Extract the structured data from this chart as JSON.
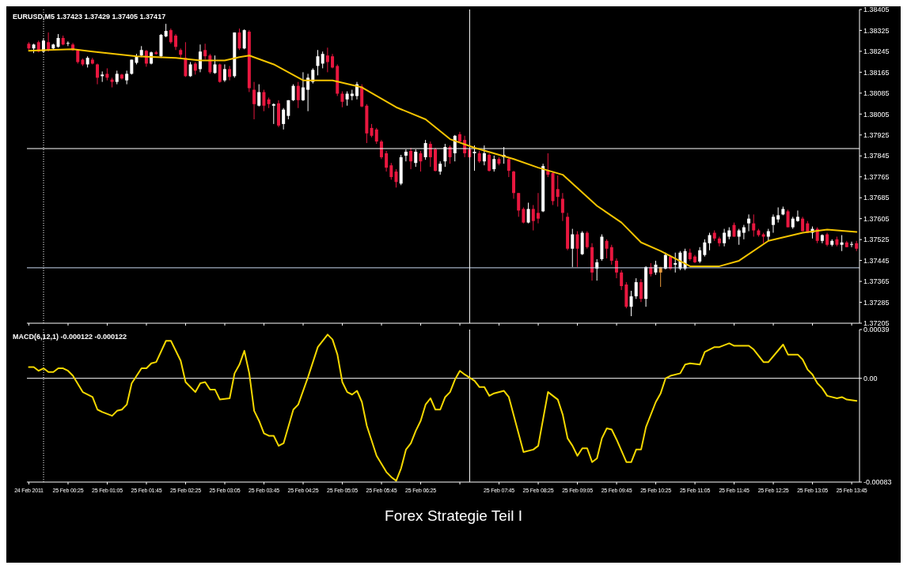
{
  "chart_data": [
    {
      "type": "candlestick",
      "title": "EURUSD,M5 1.37423 1.37429 1.37405 1.37417",
      "x": [
        "2011-02-24T23:45",
        "2011-02-24T23:50",
        "2011-02-24T23:55",
        "2011-02-25T00:00",
        "2011-02-25T00:05",
        "2011-02-25T00:10",
        "2011-02-25T00:15",
        "2011-02-25T00:20",
        "2011-02-25T00:25",
        "2011-02-25T00:30",
        "2011-02-25T00:35",
        "2011-02-25T00:40",
        "2011-02-25T00:45",
        "2011-02-25T00:50",
        "2011-02-25T00:55",
        "2011-02-25T01:00",
        "2011-02-25T01:05",
        "2011-02-25T01:10",
        "2011-02-25T01:15",
        "2011-02-25T01:20",
        "2011-02-25T01:25",
        "2011-02-25T01:30",
        "2011-02-25T01:35",
        "2011-02-25T01:40",
        "2011-02-25T01:45",
        "2011-02-25T01:50",
        "2011-02-25T01:55",
        "2011-02-25T02:00",
        "2011-02-25T02:05",
        "2011-02-25T02:10",
        "2011-02-25T02:15",
        "2011-02-25T02:20",
        "2011-02-25T02:25",
        "2011-02-25T02:30",
        "2011-02-25T02:35",
        "2011-02-25T02:40",
        "2011-02-25T02:45",
        "2011-02-25T02:50",
        "2011-02-25T02:55",
        "2011-02-25T03:00",
        "2011-02-25T03:05",
        "2011-02-25T03:10",
        "2011-02-25T03:15",
        "2011-02-25T03:20",
        "2011-02-25T03:25",
        "2011-02-25T03:30",
        "2011-02-25T03:35",
        "2011-02-25T03:40",
        "2011-02-25T03:45",
        "2011-02-25T03:50",
        "2011-02-25T03:55",
        "2011-02-25T04:00",
        "2011-02-25T04:05",
        "2011-02-25T04:10",
        "2011-02-25T04:15",
        "2011-02-25T04:20",
        "2011-02-25T04:25",
        "2011-02-25T04:30",
        "2011-02-25T04:35",
        "2011-02-25T04:40",
        "2011-02-25T04:45",
        "2011-02-25T04:50",
        "2011-02-25T04:55",
        "2011-02-25T05:00",
        "2011-02-25T05:05",
        "2011-02-25T05:10",
        "2011-02-25T05:15",
        "2011-02-25T05:20",
        "2011-02-25T05:25",
        "2011-02-25T05:30",
        "2011-02-25T05:35",
        "2011-02-25T05:40",
        "2011-02-25T05:45",
        "2011-02-25T05:50",
        "2011-02-25T05:55",
        "2011-02-25T06:00",
        "2011-02-25T06:05",
        "2011-02-25T06:10",
        "2011-02-25T06:15",
        "2011-02-25T06:20",
        "2011-02-25T06:25",
        "2011-02-25T06:30",
        "2011-02-25T06:35",
        "2011-02-25T06:40",
        "2011-02-25T06:45",
        "2011-02-25T06:50",
        "2011-02-25T06:55",
        "2011-02-25T07:00",
        "2011-02-25T07:05",
        "2011-02-25T07:10",
        "2011-02-25T07:15",
        "2011-02-25T07:20",
        "2011-02-25T07:25",
        "2011-02-25T07:30",
        "2011-02-25T07:35",
        "2011-02-25T07:40",
        "2011-02-25T07:45",
        "2011-02-25T07:50",
        "2011-02-25T07:55",
        "2011-02-25T08:00",
        "2011-02-25T08:05",
        "2011-02-25T08:10",
        "2011-02-25T08:15",
        "2011-02-25T08:20",
        "2011-02-25T08:25",
        "2011-02-25T08:30",
        "2011-02-25T08:35",
        "2011-02-25T08:40",
        "2011-02-25T08:45",
        "2011-02-25T08:50",
        "2011-02-25T08:55",
        "2011-02-25T09:00",
        "2011-02-25T09:05",
        "2011-02-25T09:10",
        "2011-02-25T09:15",
        "2011-02-25T09:20",
        "2011-02-25T09:25",
        "2011-02-25T09:30",
        "2011-02-25T09:35",
        "2011-02-25T09:40",
        "2011-02-25T09:45",
        "2011-02-25T09:50",
        "2011-02-25T09:55",
        "2011-02-25T10:00",
        "2011-02-25T10:05",
        "2011-02-25T10:10",
        "2011-02-25T10:15",
        "2011-02-25T10:20",
        "2011-02-25T10:25",
        "2011-02-25T10:30",
        "2011-02-25T10:35",
        "2011-02-25T10:40",
        "2011-02-25T10:45",
        "2011-02-25T10:50",
        "2011-02-25T10:55",
        "2011-02-25T11:00",
        "2011-02-25T11:05",
        "2011-02-25T11:10",
        "2011-02-25T11:15",
        "2011-02-25T11:20",
        "2011-02-25T11:25",
        "2011-02-25T11:30",
        "2011-02-25T11:35",
        "2011-02-25T11:40",
        "2011-02-25T11:45",
        "2011-02-25T11:50",
        "2011-02-25T11:55",
        "2011-02-25T12:00",
        "2011-02-25T12:05",
        "2011-02-25T12:10",
        "2011-02-25T12:15",
        "2011-02-25T12:20",
        "2011-02-25T12:25",
        "2011-02-25T12:30",
        "2011-02-25T12:35",
        "2011-02-25T12:40",
        "2011-02-25T12:45",
        "2011-02-25T12:50",
        "2011-02-25T12:55",
        "2011-02-25T13:00",
        "2011-02-25T13:05",
        "2011-02-25T13:10",
        "2011-02-25T13:15",
        "2011-02-25T13:20",
        "2011-02-25T13:25",
        "2011-02-25T13:30",
        "2011-02-25T13:35",
        "2011-02-25T13:40",
        "2011-02-25T13:45",
        "2011-02-25T13:50"
      ],
      "ohlc": [
        [
          1.38274,
          1.3828,
          1.3825,
          1.38256
        ],
        [
          1.38256,
          1.38274,
          1.38238,
          1.38271
        ],
        [
          1.3828,
          1.38286,
          1.38241,
          1.38244
        ],
        [
          1.38244,
          1.38293,
          1.38241,
          1.38286
        ],
        [
          1.3828,
          1.38317,
          1.38244,
          1.3825
        ],
        [
          1.38256,
          1.38274,
          1.3825,
          1.38271
        ],
        [
          1.38262,
          1.38311,
          1.38259,
          1.38296
        ],
        [
          1.38296,
          1.38305,
          1.38268,
          1.38271
        ],
        [
          1.38277,
          1.38283,
          1.38265,
          1.38277
        ],
        [
          1.38271,
          1.38277,
          1.38247,
          1.3825
        ],
        [
          1.3825,
          1.38253,
          1.38198,
          1.38204
        ],
        [
          1.38213,
          1.38217,
          1.38189,
          1.38195
        ],
        [
          1.38195,
          1.38226,
          1.38183,
          1.3822
        ],
        [
          1.38213,
          1.3822,
          1.38195,
          1.38198
        ],
        [
          1.38195,
          1.38198,
          1.38119,
          1.38144
        ],
        [
          1.3815,
          1.38168,
          1.38128,
          1.38156
        ],
        [
          1.38159,
          1.3818,
          1.38134,
          1.38144
        ],
        [
          1.38137,
          1.38144,
          1.38107,
          1.38128
        ],
        [
          1.38128,
          1.38171,
          1.38119,
          1.38159
        ],
        [
          1.38156,
          1.38159,
          1.38137,
          1.38141
        ],
        [
          1.38134,
          1.38171,
          1.38119,
          1.38159
        ],
        [
          1.38159,
          1.38213,
          1.38156,
          1.38213
        ],
        [
          1.38201,
          1.38235,
          1.38195,
          1.38226
        ],
        [
          1.38229,
          1.38265,
          1.38223,
          1.3825
        ],
        [
          1.38247,
          1.3825,
          1.38186,
          1.38198
        ],
        [
          1.38198,
          1.38244,
          1.38195,
          1.38241
        ],
        [
          1.38241,
          1.38247,
          1.38232,
          1.38235
        ],
        [
          1.38226,
          1.38311,
          1.3822,
          1.38308
        ],
        [
          1.38302,
          1.3835,
          1.38299,
          1.38323
        ],
        [
          1.38326,
          1.38332,
          1.38274,
          1.3828
        ],
        [
          1.38305,
          1.38311,
          1.3825,
          1.38262
        ],
        [
          1.3825,
          1.38256,
          1.3822,
          1.38232
        ],
        [
          1.3822,
          1.3828,
          1.38147,
          1.3815
        ],
        [
          1.3815,
          1.38204,
          1.38147,
          1.38195
        ],
        [
          1.38198,
          1.38204,
          1.38156,
          1.38171
        ],
        [
          1.38177,
          1.38271,
          1.38165,
          1.38244
        ],
        [
          1.3825,
          1.38274,
          1.38213,
          1.38226
        ],
        [
          1.38229,
          1.38235,
          1.38159,
          1.38165
        ],
        [
          1.38162,
          1.38229,
          1.38159,
          1.38195
        ],
        [
          1.38195,
          1.38198,
          1.38125,
          1.38128
        ],
        [
          1.38134,
          1.38195,
          1.38128,
          1.38177
        ],
        [
          1.38177,
          1.38189,
          1.38134,
          1.38147
        ],
        [
          1.3815,
          1.38317,
          1.38144,
          1.38317
        ],
        [
          1.38317,
          1.38332,
          1.3825,
          1.38256
        ],
        [
          1.38256,
          1.38329,
          1.38253,
          1.38326
        ],
        [
          1.3832,
          1.38326,
          1.38089,
          1.38104
        ],
        [
          1.38098,
          1.38128,
          1.37985,
          1.38043
        ],
        [
          1.38037,
          1.38119,
          1.38034,
          1.38089
        ],
        [
          1.38089,
          1.38098,
          1.38016,
          1.38037
        ],
        [
          1.38061,
          1.38068,
          1.38028,
          1.38043
        ],
        [
          1.38037,
          1.38046,
          1.37967,
          1.38043
        ],
        [
          1.38046,
          1.38058,
          1.37955,
          1.37961
        ],
        [
          1.37967,
          1.38028,
          1.37946,
          1.38022
        ],
        [
          1.37998,
          1.38058,
          1.37985,
          1.38058
        ],
        [
          1.38058,
          1.38119,
          1.38055,
          1.38113
        ],
        [
          1.38113,
          1.38128,
          1.38028,
          1.38058
        ],
        [
          1.38058,
          1.38165,
          1.38055,
          1.38107
        ],
        [
          1.38098,
          1.38159,
          1.38016,
          1.38144
        ],
        [
          1.38128,
          1.3818,
          1.38122,
          1.38174
        ],
        [
          1.38189,
          1.3825,
          1.38153,
          1.38226
        ],
        [
          1.38198,
          1.38244,
          1.3818,
          1.38235
        ],
        [
          1.38229,
          1.38259,
          1.38165,
          1.38204
        ],
        [
          1.38226,
          1.38235,
          1.3818,
          1.38183
        ],
        [
          1.38189,
          1.38195,
          1.38074,
          1.38083
        ],
        [
          1.38083,
          1.38092,
          1.38031,
          1.38052
        ],
        [
          1.38061,
          1.38092,
          1.38037,
          1.38083
        ],
        [
          1.38074,
          1.38098,
          1.38058,
          1.38083
        ],
        [
          1.38074,
          1.38128,
          1.38061,
          1.38119
        ],
        [
          1.3811,
          1.38119,
          1.38031,
          1.38034
        ],
        [
          1.38037,
          1.38043,
          1.37894,
          1.37931
        ],
        [
          1.37952,
          1.37967,
          1.37916,
          1.37922
        ],
        [
          1.37946,
          1.37952,
          1.37891,
          1.379
        ],
        [
          1.379,
          1.37906,
          1.37833,
          1.3784
        ],
        [
          1.37855,
          1.37864,
          1.37785,
          1.378
        ],
        [
          1.37809,
          1.37818,
          1.37754,
          1.37764
        ],
        [
          1.37785,
          1.37794,
          1.37724,
          1.37745
        ],
        [
          1.37739,
          1.37849,
          1.37733,
          1.3784
        ],
        [
          1.37846,
          1.3787,
          1.37824,
          1.37861
        ],
        [
          1.37864,
          1.37876,
          1.37794,
          1.37824
        ],
        [
          1.37818,
          1.3787,
          1.37803,
          1.37861
        ],
        [
          1.37855,
          1.37864,
          1.37785,
          1.37824
        ],
        [
          1.3784,
          1.37906,
          1.3783,
          1.37894
        ],
        [
          1.37891,
          1.379,
          1.37803,
          1.3784
        ],
        [
          1.3787,
          1.37876,
          1.37785,
          1.37788
        ],
        [
          1.37785,
          1.37824,
          1.37773,
          1.37815
        ],
        [
          1.37824,
          1.37891,
          1.37803,
          1.37879
        ],
        [
          1.37879,
          1.37885,
          1.37815,
          1.3784
        ],
        [
          1.37855,
          1.37925,
          1.37824,
          1.37922
        ],
        [
          1.37928,
          1.37937,
          1.37894,
          1.379
        ],
        [
          1.37906,
          1.37922,
          1.3784,
          1.37855
        ],
        [
          1.3787,
          1.37876,
          1.37837,
          1.3784
        ],
        [
          1.37855,
          1.37885,
          1.37788,
          1.37861
        ],
        [
          1.37855,
          1.37864,
          1.37818,
          1.37824
        ],
        [
          1.37824,
          1.37885,
          1.37809,
          1.37855
        ],
        [
          1.37849,
          1.37855,
          1.37785,
          1.37788
        ],
        [
          1.37794,
          1.37846,
          1.37785,
          1.37833
        ],
        [
          1.37833,
          1.3784,
          1.37809,
          1.37815
        ],
        [
          1.3784,
          1.37879,
          1.37815,
          1.37849
        ],
        [
          1.37833,
          1.3784,
          1.37764,
          1.37788
        ],
        [
          1.37785,
          1.37788,
          1.37681,
          1.37703
        ],
        [
          1.37703,
          1.37703,
          1.37612,
          1.37636
        ],
        [
          1.37642,
          1.37648,
          1.37587,
          1.3759
        ],
        [
          1.3759,
          1.37666,
          1.37587,
          1.37642
        ],
        [
          1.37642,
          1.37657,
          1.3756,
          1.37596
        ],
        [
          1.37627,
          1.37703,
          1.37587,
          1.37605
        ],
        [
          1.37633,
          1.37815,
          1.3763,
          1.37806
        ],
        [
          1.37788,
          1.37855,
          1.37764,
          1.37773
        ],
        [
          1.37779,
          1.37785,
          1.37657,
          1.37672
        ],
        [
          1.37718,
          1.3777,
          1.37651,
          1.37688
        ],
        [
          1.37681,
          1.37703,
          1.37596,
          1.37627
        ],
        [
          1.37612,
          1.37627,
          1.37484,
          1.3749
        ],
        [
          1.3749,
          1.37566,
          1.3742,
          1.37545
        ],
        [
          1.37545,
          1.37557,
          1.3742,
          1.3749
        ],
        [
          1.37469,
          1.37557,
          1.37466,
          1.37551
        ],
        [
          1.37551,
          1.37557,
          1.3749,
          1.37496
        ],
        [
          1.37496,
          1.37511,
          1.37368,
          1.37399
        ],
        [
          1.37414,
          1.3745,
          1.37368,
          1.37438
        ],
        [
          1.3745,
          1.37545,
          1.37444,
          1.37536
        ],
        [
          1.3752,
          1.37526,
          1.37453,
          1.3749
        ],
        [
          1.37496,
          1.37505,
          1.37429,
          1.37444
        ],
        [
          1.37444,
          1.37453,
          1.37377,
          1.37399
        ],
        [
          1.37399,
          1.37408,
          1.37332,
          1.37347
        ],
        [
          1.37353,
          1.37362,
          1.37262,
          1.37268
        ],
        [
          1.37268,
          1.37329,
          1.37232,
          1.37308
        ],
        [
          1.37308,
          1.37377,
          1.37298,
          1.37362
        ],
        [
          1.37362,
          1.37374,
          1.37286,
          1.37298
        ],
        [
          1.37298,
          1.37423,
          1.37268,
          1.3742
        ],
        [
          1.3742,
          1.37435,
          1.37384,
          1.37393
        ],
        [
          1.37399,
          1.37444,
          1.3739,
          1.37429
        ],
        [
          1.3742,
          1.3742,
          1.37344,
          1.37399
        ],
        [
          1.37414,
          1.37475,
          1.37411,
          1.37466
        ],
        [
          1.3746,
          1.37466,
          1.37408,
          1.37414
        ],
        [
          1.37429,
          1.37475,
          1.37399,
          1.37435
        ],
        [
          1.37414,
          1.37481,
          1.37408,
          1.37475
        ],
        [
          1.37414,
          1.3749,
          1.37408,
          1.37481
        ],
        [
          1.37475,
          1.3749,
          1.37444,
          1.3745
        ],
        [
          1.3746,
          1.37466,
          1.37435,
          1.37438
        ],
        [
          1.37441,
          1.37496,
          1.37435,
          1.37484
        ],
        [
          1.37466,
          1.37526,
          1.3746,
          1.37514
        ],
        [
          1.37511,
          1.37551,
          1.37484,
          1.37542
        ],
        [
          1.37551,
          1.3756,
          1.3752,
          1.37529
        ],
        [
          1.37529,
          1.37536,
          1.37499,
          1.37511
        ],
        [
          1.37511,
          1.37566,
          1.37499,
          1.37551
        ],
        [
          1.37536,
          1.37572,
          1.37526,
          1.3756
        ],
        [
          1.37581,
          1.3759,
          1.37536,
          1.37536
        ],
        [
          1.37536,
          1.37566,
          1.37505,
          1.3756
        ],
        [
          1.37551,
          1.37581,
          1.37526,
          1.37572
        ],
        [
          1.37587,
          1.37621,
          1.37557,
          1.37605
        ],
        [
          1.37587,
          1.37621,
          1.37536,
          1.3756
        ],
        [
          1.3756,
          1.37566,
          1.37536,
          1.37542
        ],
        [
          1.37545,
          1.37551,
          1.37511,
          1.37536
        ],
        [
          1.37536,
          1.37566,
          1.3752,
          1.37557
        ],
        [
          1.37581,
          1.37621,
          1.37551,
          1.37612
        ],
        [
          1.37602,
          1.37648,
          1.3759,
          1.37618
        ],
        [
          1.37621,
          1.37651,
          1.37618,
          1.37642
        ],
        [
          1.37633,
          1.37639,
          1.37572,
          1.37572
        ],
        [
          1.37572,
          1.37612,
          1.37566,
          1.37605
        ],
        [
          1.37596,
          1.37636,
          1.37593,
          1.37612
        ],
        [
          1.37605,
          1.37612,
          1.37557,
          1.37557
        ],
        [
          1.37587,
          1.37596,
          1.37551,
          1.37551
        ],
        [
          1.37551,
          1.37575,
          1.37529,
          1.37566
        ],
        [
          1.37566,
          1.37572,
          1.37511,
          1.3752
        ],
        [
          1.3752,
          1.37545,
          1.37511,
          1.37542
        ],
        [
          1.37545,
          1.37551,
          1.37499,
          1.37505
        ],
        [
          1.37505,
          1.37526,
          1.37499,
          1.3752
        ],
        [
          1.37526,
          1.37536,
          1.37499,
          1.37505
        ],
        [
          1.37505,
          1.37542,
          1.37481,
          1.37514
        ],
        [
          1.37514,
          1.3752,
          1.37496,
          1.37496
        ],
        [
          1.37505,
          1.37517,
          1.37496,
          1.37508
        ],
        [
          1.37511,
          1.3752,
          1.37481,
          1.3749
        ]
      ],
      "colors": [
        "#e8173f",
        "#ffffff",
        "#e8173f",
        "#ffffff",
        "#e8173f",
        "#ffffff",
        "#ffffff",
        "#e8173f",
        "#ffffff",
        "#e8173f",
        "#e8173f",
        "#e8173f",
        "#ffffff",
        "#e8173f",
        "#e8173f",
        "#ffffff",
        "#e8173f",
        "#e8173f",
        "#ffffff",
        "#e8173f",
        "#ffffff",
        "#ffffff",
        "#ffffff",
        "#ffffff",
        "#e8173f",
        "#ffffff",
        "#e8173f",
        "#ffffff",
        "#ffffff",
        "#e8173f",
        "#e8173f",
        "#e8173f",
        "#e8173f",
        "#ffffff",
        "#e8173f",
        "#ffffff",
        "#e8173f",
        "#e8173f",
        "#ffffff",
        "#e8173f",
        "#ffffff",
        "#e8173f",
        "#ffffff",
        "#e8173f",
        "#ffffff",
        "#e8173f",
        "#e8173f",
        "#ffffff",
        "#e8173f",
        "#e8173f",
        "#ffffff",
        "#e8173f",
        "#ffffff",
        "#ffffff",
        "#ffffff",
        "#e8173f",
        "#ffffff",
        "#ffffff",
        "#ffffff",
        "#ffffff",
        "#ffffff",
        "#e8173f",
        "#e8173f",
        "#e8173f",
        "#e8173f",
        "#ffffff",
        "#ffffff",
        "#ffffff",
        "#e8173f",
        "#e8173f",
        "#e8173f",
        "#e8173f",
        "#e8173f",
        "#e8173f",
        "#e8173f",
        "#e8173f",
        "#ffffff",
        "#ffffff",
        "#e8173f",
        "#ffffff",
        "#e8173f",
        "#ffffff",
        "#e8173f",
        "#e8173f",
        "#ffffff",
        "#ffffff",
        "#e8173f",
        "#ffffff",
        "#e8173f",
        "#e8173f",
        "#e8173f",
        "#ffffff",
        "#e8173f",
        "#ffffff",
        "#e8173f",
        "#ffffff",
        "#e8173f",
        "#ffffff",
        "#e8173f",
        "#e8173f",
        "#e8173f",
        "#e8173f",
        "#ffffff",
        "#e8173f",
        "#e8173f",
        "#ffffff",
        "#e8173f",
        "#e8173f",
        "#e8173f",
        "#e8173f",
        "#e8173f",
        "#ffffff",
        "#e8173f",
        "#ffffff",
        "#e8173f",
        "#e8173f",
        "#ffffff",
        "#ffffff",
        "#e8173f",
        "#e8173f",
        "#e8173f",
        "#e8173f",
        "#e8173f",
        "#ffffff",
        "#ffffff",
        "#e8173f",
        "#ffffff",
        "#e8173f",
        "#ffffff",
        "#e89a3c",
        "#ffffff",
        "#e8173f",
        "#ffffff",
        "#ffffff",
        "#ffffff",
        "#e8173f",
        "#e8173f",
        "#ffffff",
        "#ffffff",
        "#ffffff",
        "#e8173f",
        "#e8173f",
        "#ffffff",
        "#ffffff",
        "#e8173f",
        "#ffffff",
        "#ffffff",
        "#ffffff",
        "#e8173f",
        "#e8173f",
        "#e8173f",
        "#ffffff",
        "#ffffff",
        "#ffffff",
        "#ffffff",
        "#e8173f",
        "#ffffff",
        "#ffffff",
        "#e8173f",
        "#e8173f",
        "#ffffff",
        "#e8173f",
        "#ffffff",
        "#e8173f",
        "#ffffff",
        "#e8173f",
        "#ffffff",
        "#e8173f",
        "#ffffff",
        "#e8173f"
      ],
      "series": [
        {
          "type": "line",
          "color": "#f5c400",
          "x": [
            "2011-02-24T23:45",
            "2011-02-25T00:05",
            "2011-02-25T00:30",
            "2011-02-25T00:50",
            "2011-02-25T01:35",
            "2011-02-25T02:15",
            "2011-02-25T02:40",
            "2011-02-25T03:05",
            "2011-02-25T03:20",
            "2011-02-25T03:30",
            "2011-02-25T03:55",
            "2011-02-25T04:25",
            "2011-02-25T04:55",
            "2011-02-25T05:25",
            "2011-02-25T06:00",
            "2011-02-25T06:30",
            "2011-02-25T06:55",
            "2011-02-25T07:20",
            "2011-02-25T08:00",
            "2011-02-25T08:25",
            "2011-02-25T08:50",
            "2011-02-25T09:25",
            "2011-02-25T09:50",
            "2011-02-25T10:10",
            "2011-02-25T10:30",
            "2011-02-25T11:00",
            "2011-02-25T11:30",
            "2011-02-25T11:50",
            "2011-02-25T12:20",
            "2011-02-25T12:55",
            "2011-02-25T13:20",
            "2011-02-25T13:50"
          ],
          "values": [
            1.38247,
            1.3825,
            1.38253,
            1.38244,
            1.38226,
            1.3822,
            1.3821,
            1.3821,
            1.38223,
            1.38229,
            1.38195,
            1.38134,
            1.38134,
            1.38107,
            1.38031,
            1.37985,
            1.37909,
            1.37876,
            1.37833,
            1.378,
            1.37773,
            1.37654,
            1.3759,
            1.37514,
            1.37481,
            1.37423,
            1.37423,
            1.37444,
            1.3752,
            1.37551,
            1.37563,
            1.37554
          ]
        }
      ],
      "xlim": [
        "2011-02-24T23:43",
        "2011-02-25T13:53"
      ],
      "xticks": [
        {
          "value": "2011-02-24T23:45",
          "label": null
        },
        {
          "value": "2011-02-25T00:25",
          "label": null
        },
        {
          "value": "2011-02-25T01:05",
          "label": null
        },
        {
          "value": "2011-02-25T01:45",
          "label": null
        },
        {
          "value": "2011-02-25T02:25",
          "label": null
        },
        {
          "value": "2011-02-25T03:05",
          "label": null
        },
        {
          "value": "2011-02-25T03:45",
          "label": null
        },
        {
          "value": "2011-02-25T04:25",
          "label": null
        },
        {
          "value": "2011-02-25T05:05",
          "label": null
        },
        {
          "value": "2011-02-25T05:45",
          "label": null
        },
        {
          "value": "2011-02-25T06:25",
          "label": null
        },
        {
          "value": "2011-02-25T07:05",
          "label": null
        },
        {
          "value": "2011-02-25T07:45",
          "label": null
        },
        {
          "value": "2011-02-25T08:25",
          "label": null
        },
        {
          "value": "2011-02-25T09:05",
          "label": null
        },
        {
          "value": "2011-02-25T09:45",
          "label": null
        },
        {
          "value": "2011-02-25T10:25",
          "label": null
        },
        {
          "value": "2011-02-25T11:05",
          "label": null
        },
        {
          "value": "2011-02-25T11:45",
          "label": null
        },
        {
          "value": "2011-02-25T12:25",
          "label": null
        },
        {
          "value": "2011-02-25T13:05",
          "label": null
        },
        {
          "value": "2011-02-25T13:45",
          "label": null
        }
      ],
      "ylim": [
        1.37205,
        1.38405
      ],
      "yticks": [
        1.38405,
        1.38325,
        1.38245,
        1.38165,
        1.38085,
        1.38005,
        1.37925,
        1.37845,
        1.37765,
        1.37685,
        1.37605,
        1.37525,
        1.37445,
        1.37365,
        1.37285,
        1.37205
      ],
      "tick_labels": "y",
      "ref_lines": [
        {
          "axis": "y",
          "value": 1.37873,
          "color": "#ffffff"
        },
        {
          "axis": "y",
          "value": 1.37417,
          "color": "#c8d8f0"
        },
        {
          "axis": "x",
          "value": "2011-02-25T07:15",
          "color": "#ffffff"
        },
        {
          "axis": "x",
          "value": "2011-02-25T00:00",
          "color": "#ffffff",
          "line_style": "dotted"
        }
      ]
    },
    {
      "type": "line",
      "title": "MACD(6,12,1) -0.000122 -0.000122",
      "series": [
        {
          "color": "#f5d800",
          "x": [
            "2011-02-24T23:45",
            "2011-02-24T23:50",
            "2011-02-24T23:55",
            "2011-02-25T00:00",
            "2011-02-25T00:05",
            "2011-02-25T00:10",
            "2011-02-25T00:15",
            "2011-02-25T00:20",
            "2011-02-25T00:25",
            "2011-02-25T00:30",
            "2011-02-25T00:40",
            "2011-02-25T00:50",
            "2011-02-25T00:55",
            "2011-02-25T01:00",
            "2011-02-25T01:10",
            "2011-02-25T01:15",
            "2011-02-25T01:20",
            "2011-02-25T01:25",
            "2011-02-25T01:30",
            "2011-02-25T01:40",
            "2011-02-25T01:45",
            "2011-02-25T01:50",
            "2011-02-25T01:55",
            "2011-02-25T02:05",
            "2011-02-25T02:10",
            "2011-02-25T02:20",
            "2011-02-25T02:25",
            "2011-02-25T02:35",
            "2011-02-25T02:40",
            "2011-02-25T02:45",
            "2011-02-25T02:50",
            "2011-02-25T02:55",
            "2011-02-25T03:00",
            "2011-02-25T03:10",
            "2011-02-25T03:15",
            "2011-02-25T03:20",
            "2011-02-25T03:25",
            "2011-02-25T03:30",
            "2011-02-25T03:35",
            "2011-02-25T03:40",
            "2011-02-25T03:45",
            "2011-02-25T03:50",
            "2011-02-25T03:55",
            "2011-02-25T04:00",
            "2011-02-25T04:05",
            "2011-02-25T04:15",
            "2011-02-25T04:20",
            "2011-02-25T04:30",
            "2011-02-25T04:40",
            "2011-02-25T04:50",
            "2011-02-25T04:55",
            "2011-02-25T05:00",
            "2011-02-25T05:05",
            "2011-02-25T05:10",
            "2011-02-25T05:15",
            "2011-02-25T05:20",
            "2011-02-25T05:25",
            "2011-02-25T05:30",
            "2011-02-25T05:40",
            "2011-02-25T05:50",
            "2011-02-25T05:55",
            "2011-02-25T06:00",
            "2011-02-25T06:05",
            "2011-02-25T06:10",
            "2011-02-25T06:15",
            "2011-02-25T06:20",
            "2011-02-25T06:25",
            "2011-02-25T06:30",
            "2011-02-25T06:35",
            "2011-02-25T06:40",
            "2011-02-25T06:45",
            "2011-02-25T06:50",
            "2011-02-25T06:55",
            "2011-02-25T07:00",
            "2011-02-25T07:05",
            "2011-02-25T07:10",
            "2011-02-25T07:20",
            "2011-02-25T07:25",
            "2011-02-25T07:30",
            "2011-02-25T07:35",
            "2011-02-25T07:40",
            "2011-02-25T07:50",
            "2011-02-25T07:55",
            "2011-02-25T08:10",
            "2011-02-25T08:20",
            "2011-02-25T08:25",
            "2011-02-25T08:35",
            "2011-02-25T08:45",
            "2011-02-25T08:50",
            "2011-02-25T08:55",
            "2011-02-25T09:00",
            "2011-02-25T09:05",
            "2011-02-25T09:10",
            "2011-02-25T09:15",
            "2011-02-25T09:20",
            "2011-02-25T09:25",
            "2011-02-25T09:30",
            "2011-02-25T09:35",
            "2011-02-25T09:40",
            "2011-02-25T09:45",
            "2011-02-25T09:55",
            "2011-02-25T10:00",
            "2011-02-25T10:05",
            "2011-02-25T10:10",
            "2011-02-25T10:15",
            "2011-02-25T10:25",
            "2011-02-25T10:30",
            "2011-02-25T10:35",
            "2011-02-25T10:40",
            "2011-02-25T10:50",
            "2011-02-25T10:55",
            "2011-02-25T11:00",
            "2011-02-25T11:10",
            "2011-02-25T11:15",
            "2011-02-25T11:25",
            "2011-02-25T11:30",
            "2011-02-25T11:40",
            "2011-02-25T11:45",
            "2011-02-25T12:00",
            "2011-02-25T12:05",
            "2011-02-25T12:15",
            "2011-02-25T12:20",
            "2011-02-25T12:35",
            "2011-02-25T12:40",
            "2011-02-25T12:50",
            "2011-02-25T12:55",
            "2011-02-25T13:00",
            "2011-02-25T13:05",
            "2011-02-25T13:10",
            "2011-02-25T13:15",
            "2011-02-25T13:20",
            "2011-02-25T13:30",
            "2011-02-25T13:35",
            "2011-02-25T13:40",
            "2011-02-25T13:50"
          ],
          "values": [
            9e-05,
            9e-05,
            6e-05,
            8e-05,
            5e-05,
            5e-05,
            8e-05,
            8e-05,
            6e-05,
            2e-05,
            -0.00011,
            -0.00015,
            -0.00025,
            -0.00027,
            -0.0003,
            -0.00026,
            -0.00025,
            -0.00021,
            -4e-05,
            8e-05,
            8e-05,
            0.00012,
            0.00013,
            0.0003,
            0.0003,
            0.00014,
            -3e-05,
            -0.00011,
            -4e-05,
            -3e-05,
            -9e-05,
            -9e-05,
            -0.00017,
            -0.00016,
            4e-05,
            0.00011,
            0.00022,
            4e-05,
            -0.00026,
            -0.00034,
            -0.00044,
            -0.00046,
            -0.00046,
            -0.00054,
            -0.00052,
            -0.00025,
            -0.00021,
            1e-05,
            0.00025,
            0.00035,
            0.00031,
            0.00019,
            -3e-05,
            -0.00011,
            -0.00013,
            -0.0001,
            -0.00019,
            -0.00038,
            -0.00062,
            -0.00075,
            -0.00079,
            -0.00082,
            -0.00072,
            -0.00057,
            -0.00052,
            -0.00042,
            -0.00034,
            -0.00021,
            -0.00016,
            -0.00025,
            -0.00025,
            -0.00015,
            -0.00011,
            -1e-05,
            6e-05,
            3e-05,
            -2e-05,
            -7e-05,
            -7e-05,
            -0.00014,
            -0.00012,
            -0.0001,
            -0.00015,
            -0.00059,
            -0.00057,
            -0.00054,
            -0.00011,
            -0.00017,
            -0.00029,
            -0.00048,
            -0.00054,
            -0.00062,
            -0.00056,
            -0.00056,
            -0.00067,
            -0.00064,
            -0.00048,
            -0.0004,
            -0.00041,
            -0.00049,
            -0.00067,
            -0.00067,
            -0.00057,
            -0.00057,
            -0.00039,
            -0.00019,
            -0.00012,
            0,
            2e-05,
            4e-05,
            0.00011,
            0.00012,
            0.00011,
            0.00021,
            0.00025,
            0.00025,
            0.00028,
            0.00026,
            0.00026,
            0.00023,
            0.00013,
            0.00013,
            0.00027,
            0.00019,
            0.00019,
            0.00015,
            7e-05,
            3e-05,
            -4e-05,
            -8e-05,
            -0.00014,
            -0.00016,
            -0.00015,
            -0.00017,
            -0.00018
          ]
        }
      ],
      "xlim": [
        "2011-02-24T23:43",
        "2011-02-25T13:53"
      ],
      "xticks": [
        {
          "value": "2011-02-24T23:45",
          "label": "24 Feb 2011"
        },
        {
          "value": "2011-02-25T00:25",
          "label": "25 Feb 00:25"
        },
        {
          "value": "2011-02-25T01:05",
          "label": "25 Feb 01:05"
        },
        {
          "value": "2011-02-25T01:45",
          "label": "25 Feb 01:45"
        },
        {
          "value": "2011-02-25T02:25",
          "label": "25 Feb 02:25"
        },
        {
          "value": "2011-02-25T03:05",
          "label": "25 Feb 03:05"
        },
        {
          "value": "2011-02-25T03:45",
          "label": "25 Feb 03:45"
        },
        {
          "value": "2011-02-25T04:25",
          "label": "25 Feb 04:25"
        },
        {
          "value": "2011-02-25T05:05",
          "label": "25 Feb 05:05"
        },
        {
          "value": "2011-02-25T05:45",
          "label": "25 Feb 05:45"
        },
        {
          "value": "2011-02-25T06:25",
          "label": "25 Feb 06:25"
        },
        {
          "value": "2011-02-25T07:05",
          "label": null
        },
        {
          "value": "2011-02-25T07:45",
          "label": "25 Feb 07:45"
        },
        {
          "value": "2011-02-25T08:25",
          "label": "25 Feb 08:25"
        },
        {
          "value": "2011-02-25T09:05",
          "label": "25 Feb 09:05"
        },
        {
          "value": "2011-02-25T09:45",
          "label": "25 Feb 09:45"
        },
        {
          "value": "2011-02-25T10:25",
          "label": "25 Feb 10:25"
        },
        {
          "value": "2011-02-25T11:05",
          "label": "25 Feb 11:05"
        },
        {
          "value": "2011-02-25T11:45",
          "label": "25 Feb 11:45"
        },
        {
          "value": "2011-02-25T12:25",
          "label": "25 Feb 12:25"
        },
        {
          "value": "2011-02-25T13:05",
          "label": "25 Feb 13:05"
        },
        {
          "value": "2011-02-25T13:45",
          "label": "25 Feb 13:45"
        }
      ],
      "ylim": [
        -0.00083,
        0.00039
      ],
      "yticks": [
        0.00039,
        {
          "value": 0,
          "label": "0.00"
        },
        -0.00083
      ],
      "ref_lines": [
        {
          "axis": "y",
          "value": 0,
          "color": "#ffffff"
        },
        {
          "axis": "x",
          "value": "2011-02-25T07:15",
          "color": "#ffffff"
        },
        {
          "axis": "x",
          "value": "2011-02-25T00:00",
          "color": "#ffffff",
          "line_style": "dotted"
        }
      ],
      "annotations": [
        "Forex Strategie Teil I"
      ]
    }
  ]
}
